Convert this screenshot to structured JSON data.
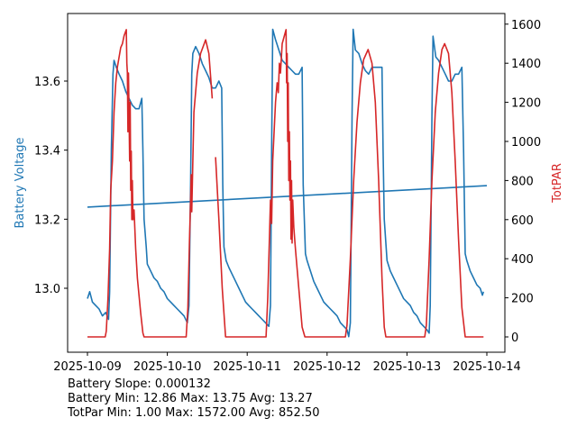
{
  "chart_data": {
    "type": "line",
    "xlabel": "",
    "ylabel_left": "Battery Voltage",
    "ylabel_right": "TotPAR",
    "x_ticks": [
      "2025-10-09",
      "2025-10-10",
      "2025-10-11",
      "2025-10-12",
      "2025-10-13",
      "2025-10-14"
    ],
    "y_left_ticks": [
      "13.0",
      "13.2",
      "13.4",
      "13.6"
    ],
    "y_right_ticks": [
      "0",
      "200",
      "400",
      "600",
      "800",
      "1000",
      "1200",
      "1400",
      "1600"
    ],
    "y_left_lim": [
      12.82,
      13.8
    ],
    "y_right_lim": [
      -75,
      1650
    ],
    "grid": false,
    "colors": {
      "battery": "#1f77b4",
      "par": "#d62728"
    },
    "annotations": [
      "Battery Slope: 0.000132",
      "Battery Min: 12.86 Max: 13.75 Avg: 13.27",
      "TotPar Min: 1.00 Max: 1572.00 Avg: 852.50"
    ],
    "series": [
      {
        "axis": "left",
        "color": "#1f77b4",
        "points": [
          [
            "2025-10-09T00:00",
            12.97
          ],
          [
            "2025-10-09T00:40",
            12.99
          ],
          [
            "2025-10-09T01:30",
            12.96
          ],
          [
            "2025-10-09T02:30",
            12.95
          ],
          [
            "2025-10-09T03:30",
            12.94
          ],
          [
            "2025-10-09T04:30",
            12.92
          ],
          [
            "2025-10-09T05:30",
            12.93
          ],
          [
            "2025-10-09T06:20",
            12.91
          ],
          [
            "2025-10-09T06:40",
            12.99
          ],
          [
            "2025-10-09T07:10",
            13.4
          ],
          [
            "2025-10-09T07:40",
            13.62
          ],
          [
            "2025-10-09T08:00",
            13.66
          ],
          [
            "2025-10-09T08:40",
            13.64
          ],
          [
            "2025-10-09T09:30",
            13.62
          ],
          [
            "2025-10-09T10:30",
            13.6
          ],
          [
            "2025-10-09T11:30",
            13.57
          ],
          [
            "2025-10-09T12:30",
            13.55
          ],
          [
            "2025-10-09T13:30",
            13.53
          ],
          [
            "2025-10-09T14:30",
            13.52
          ],
          [
            "2025-10-09T15:30",
            13.52
          ],
          [
            "2025-10-09T16:20",
            13.55
          ],
          [
            "2025-10-09T16:40",
            13.4
          ],
          [
            "2025-10-09T17:00",
            13.2
          ],
          [
            "2025-10-09T17:40",
            13.12
          ],
          [
            "2025-10-09T18:00",
            13.07
          ],
          [
            "2025-10-09T19:00",
            13.05
          ],
          [
            "2025-10-09T20:00",
            13.03
          ],
          [
            "2025-10-09T21:00",
            13.02
          ],
          [
            "2025-10-09T22:00",
            13.0
          ],
          [
            "2025-10-09T23:00",
            12.99
          ],
          [
            "2025-10-10T00:00",
            12.97
          ],
          [
            "2025-10-10T01:00",
            12.96
          ],
          [
            "2025-10-10T02:00",
            12.95
          ],
          [
            "2025-10-10T03:00",
            12.94
          ],
          [
            "2025-10-10T04:00",
            12.93
          ],
          [
            "2025-10-10T05:00",
            12.92
          ],
          [
            "2025-10-10T06:00",
            12.9
          ],
          [
            "2025-10-10T06:30",
            12.95
          ],
          [
            "2025-10-10T07:00",
            13.3
          ],
          [
            "2025-10-10T07:20",
            13.62
          ],
          [
            "2025-10-10T07:40",
            13.68
          ],
          [
            "2025-10-10T08:30",
            13.7
          ],
          [
            "2025-10-10T09:30",
            13.68
          ],
          [
            "2025-10-10T10:30",
            13.65
          ],
          [
            "2025-10-10T11:30",
            13.63
          ],
          [
            "2025-10-10T12:30",
            13.61
          ],
          [
            "2025-10-10T13:30",
            13.58
          ],
          [
            "2025-10-10T14:30",
            13.58
          ],
          [
            "2025-10-10T15:30",
            13.6
          ],
          [
            "2025-10-10T16:20",
            13.58
          ],
          [
            "2025-10-10T16:40",
            13.3
          ],
          [
            "2025-10-10T17:00",
            13.12
          ],
          [
            "2025-10-10T17:40",
            13.08
          ],
          [
            "2025-10-10T18:30",
            13.06
          ],
          [
            "2025-10-10T19:30",
            13.04
          ],
          [
            "2025-10-10T20:30",
            13.02
          ],
          [
            "2025-10-10T21:30",
            13.0
          ],
          [
            "2025-10-10T22:30",
            12.98
          ],
          [
            "2025-10-10T23:30",
            12.96
          ],
          [
            "2025-10-11T00:30",
            12.95
          ],
          [
            "2025-10-11T01:30",
            12.94
          ],
          [
            "2025-10-11T02:30",
            12.93
          ],
          [
            "2025-10-11T03:30",
            12.92
          ],
          [
            "2025-10-11T04:30",
            12.91
          ],
          [
            "2025-10-11T05:30",
            12.9
          ],
          [
            "2025-10-11T06:30",
            12.89
          ],
          [
            "2025-10-11T07:00",
            12.95
          ],
          [
            "2025-10-11T07:20",
            13.4
          ],
          [
            "2025-10-11T07:40",
            13.75
          ],
          [
            "2025-10-11T08:30",
            13.72
          ],
          [
            "2025-10-11T09:30",
            13.69
          ],
          [
            "2025-10-11T10:30",
            13.66
          ],
          [
            "2025-10-11T11:30",
            13.65
          ],
          [
            "2025-10-11T12:30",
            13.64
          ],
          [
            "2025-10-11T13:30",
            13.63
          ],
          [
            "2025-10-11T14:30",
            13.62
          ],
          [
            "2025-10-11T15:30",
            13.62
          ],
          [
            "2025-10-11T16:30",
            13.64
          ],
          [
            "2025-10-11T16:50",
            13.3
          ],
          [
            "2025-10-11T17:30",
            13.1
          ],
          [
            "2025-10-11T18:00",
            13.08
          ],
          [
            "2025-10-11T19:00",
            13.05
          ],
          [
            "2025-10-11T20:00",
            13.02
          ],
          [
            "2025-10-11T21:00",
            13.0
          ],
          [
            "2025-10-11T22:00",
            12.98
          ],
          [
            "2025-10-11T23:00",
            12.96
          ],
          [
            "2025-10-12T00:00",
            12.95
          ],
          [
            "2025-10-12T01:00",
            12.94
          ],
          [
            "2025-10-12T02:00",
            12.93
          ],
          [
            "2025-10-12T03:00",
            12.92
          ],
          [
            "2025-10-12T04:00",
            12.9
          ],
          [
            "2025-10-12T05:00",
            12.89
          ],
          [
            "2025-10-12T06:00",
            12.88
          ],
          [
            "2025-10-12T06:30",
            12.86
          ],
          [
            "2025-10-12T07:00",
            12.9
          ],
          [
            "2025-10-12T07:30",
            13.5
          ],
          [
            "2025-10-12T07:50",
            13.75
          ],
          [
            "2025-10-12T08:30",
            13.69
          ],
          [
            "2025-10-12T09:30",
            13.68
          ],
          [
            "2025-10-12T10:30",
            13.65
          ],
          [
            "2025-10-12T11:30",
            13.63
          ],
          [
            "2025-10-12T12:30",
            13.62
          ],
          [
            "2025-10-12T13:30",
            13.64
          ],
          [
            "2025-10-12T14:30",
            13.64
          ],
          [
            "2025-10-12T15:30",
            13.64
          ],
          [
            "2025-10-12T16:30",
            13.64
          ],
          [
            "2025-10-12T16:50",
            13.4
          ],
          [
            "2025-10-12T17:10",
            13.2
          ],
          [
            "2025-10-12T18:00",
            13.08
          ],
          [
            "2025-10-12T19:00",
            13.05
          ],
          [
            "2025-10-12T20:00",
            13.03
          ],
          [
            "2025-10-12T21:00",
            13.01
          ],
          [
            "2025-10-12T22:00",
            12.99
          ],
          [
            "2025-10-12T23:00",
            12.97
          ],
          [
            "2025-10-13T00:00",
            12.96
          ],
          [
            "2025-10-13T01:00",
            12.95
          ],
          [
            "2025-10-13T02:00",
            12.93
          ],
          [
            "2025-10-13T03:00",
            12.92
          ],
          [
            "2025-10-13T04:00",
            12.9
          ],
          [
            "2025-10-13T05:00",
            12.89
          ],
          [
            "2025-10-13T06:00",
            12.88
          ],
          [
            "2025-10-13T06:40",
            12.87
          ],
          [
            "2025-10-13T07:00",
            12.95
          ],
          [
            "2025-10-13T07:30",
            13.5
          ],
          [
            "2025-10-13T07:50",
            13.73
          ],
          [
            "2025-10-13T08:40",
            13.67
          ],
          [
            "2025-10-13T09:30",
            13.66
          ],
          [
            "2025-10-13T10:30",
            13.64
          ],
          [
            "2025-10-13T11:30",
            13.62
          ],
          [
            "2025-10-13T12:30",
            13.6
          ],
          [
            "2025-10-13T13:30",
            13.6
          ],
          [
            "2025-10-13T14:30",
            13.62
          ],
          [
            "2025-10-13T15:30",
            13.62
          ],
          [
            "2025-10-13T16:30",
            13.64
          ],
          [
            "2025-10-13T17:00",
            13.4
          ],
          [
            "2025-10-13T17:30",
            13.1
          ],
          [
            "2025-10-13T18:00",
            13.08
          ],
          [
            "2025-10-13T19:00",
            13.05
          ],
          [
            "2025-10-13T20:00",
            13.03
          ],
          [
            "2025-10-13T21:00",
            13.01
          ],
          [
            "2025-10-13T22:00",
            13.0
          ],
          [
            "2025-10-13T22:40",
            12.98
          ],
          [
            "2025-10-13T23:00",
            12.99
          ]
        ]
      },
      {
        "axis": "left",
        "color": "#1f77b4",
        "points": [
          [
            "2025-10-09T00:00",
            13.235
          ],
          [
            "2025-10-14T00:00",
            13.297
          ]
        ]
      },
      {
        "axis": "right",
        "color": "#d62728",
        "points": [
          [
            "2025-10-09T00:00",
            0
          ],
          [
            "2025-10-09T05:20",
            0
          ],
          [
            "2025-10-09T05:40",
            30
          ],
          [
            "2025-10-09T06:10",
            200
          ],
          [
            "2025-10-09T06:40",
            450
          ],
          [
            "2025-10-09T07:00",
            750
          ],
          [
            "2025-10-09T07:30",
            900
          ],
          [
            "2025-10-09T08:00",
            1150
          ],
          [
            "2025-10-09T08:30",
            1300
          ],
          [
            "2025-10-09T09:00",
            1380
          ],
          [
            "2025-10-09T10:00",
            1480
          ],
          [
            "2025-10-09T10:30",
            1500
          ],
          [
            "2025-10-09T11:00",
            1540
          ],
          [
            "2025-10-09T11:40",
            1572
          ],
          [
            "2025-10-09T11:50",
            1400
          ],
          [
            "2025-10-09T12:00",
            1350
          ],
          [
            "2025-10-09T12:10",
            1050
          ],
          [
            "2025-10-09T12:20",
            1350
          ],
          [
            "2025-10-09T12:30",
            1150
          ],
          [
            "2025-10-09T12:40",
            900
          ],
          [
            "2025-10-09T12:50",
            1200
          ],
          [
            "2025-10-09T13:00",
            750
          ],
          [
            "2025-10-09T13:10",
            950
          ],
          [
            "2025-10-09T13:20",
            600
          ],
          [
            "2025-10-09T13:30",
            800
          ],
          [
            "2025-10-09T13:40",
            600
          ],
          [
            "2025-10-09T14:00",
            650
          ],
          [
            "2025-10-09T14:30",
            450
          ],
          [
            "2025-10-09T15:00",
            300
          ],
          [
            "2025-10-09T16:00",
            120
          ],
          [
            "2025-10-09T16:40",
            20
          ],
          [
            "2025-10-09T17:00",
            0
          ],
          [
            "2025-10-10T05:40",
            0
          ],
          [
            "2025-10-10T06:10",
            150
          ],
          [
            "2025-10-10T06:40",
            500
          ],
          [
            "2025-10-10T07:00",
            700
          ],
          [
            "2025-10-10T07:10",
            830
          ],
          [
            "2025-10-10T07:20",
            640
          ],
          [
            "2025-10-10T07:40",
            900
          ],
          [
            "2025-10-10T08:00",
            1150
          ],
          [
            "2025-10-10T09:00",
            1350
          ],
          [
            "2025-10-10T10:00",
            1450
          ],
          [
            "2025-10-10T11:30",
            1520
          ],
          [
            "2025-10-10T12:30",
            1450
          ],
          [
            "2025-10-10T13:30",
            1220
          ],
          [
            null,
            null
          ],
          [
            "2025-10-10T14:30",
            920
          ],
          [
            "2025-10-10T15:30",
            600
          ],
          [
            "2025-10-10T16:30",
            250
          ],
          [
            "2025-10-10T17:30",
            0
          ],
          [
            "2025-10-11T05:40",
            0
          ],
          [
            "2025-10-11T06:10",
            200
          ],
          [
            "2025-10-11T06:40",
            500
          ],
          [
            "2025-10-11T07:00",
            700
          ],
          [
            "2025-10-11T07:20",
            580
          ],
          [
            "2025-10-11T07:40",
            900
          ],
          [
            "2025-10-11T08:30",
            1200
          ],
          [
            "2025-10-11T09:00",
            1300
          ],
          [
            "2025-10-11T09:20",
            1250
          ],
          [
            "2025-10-11T09:40",
            1400
          ],
          [
            "2025-10-11T10:00",
            1350
          ],
          [
            "2025-10-11T10:30",
            1500
          ],
          [
            "2025-10-11T11:40",
            1572
          ],
          [
            "2025-10-11T11:50",
            1300
          ],
          [
            "2025-10-11T12:00",
            1450
          ],
          [
            "2025-10-11T12:10",
            1000
          ],
          [
            "2025-10-11T12:20",
            1300
          ],
          [
            "2025-10-11T12:30",
            800
          ],
          [
            "2025-10-11T12:40",
            1050
          ],
          [
            "2025-10-11T12:50",
            700
          ],
          [
            "2025-10-11T13:00",
            900
          ],
          [
            "2025-10-11T13:10",
            500
          ],
          [
            "2025-10-11T13:20",
            800
          ],
          [
            "2025-10-11T13:30",
            480
          ],
          [
            "2025-10-11T13:40",
            700
          ],
          [
            "2025-10-11T14:00",
            560
          ],
          [
            "2025-10-11T14:30",
            450
          ],
          [
            "2025-10-11T15:30",
            250
          ],
          [
            "2025-10-11T16:30",
            50
          ],
          [
            "2025-10-11T17:20",
            0
          ],
          [
            "2025-10-12T05:30",
            0
          ],
          [
            "2025-10-12T06:00",
            60
          ],
          [
            "2025-10-12T07:00",
            400
          ],
          [
            "2025-10-12T08:00",
            800
          ],
          [
            "2025-10-12T09:00",
            1100
          ],
          [
            "2025-10-12T10:00",
            1300
          ],
          [
            "2025-10-12T11:00",
            1420
          ],
          [
            "2025-10-12T12:20",
            1470
          ],
          [
            "2025-10-12T13:30",
            1400
          ],
          [
            "2025-10-12T14:30",
            1200
          ],
          [
            "2025-10-12T15:30",
            800
          ],
          [
            "2025-10-12T16:30",
            300
          ],
          [
            "2025-10-12T17:10",
            50
          ],
          [
            "2025-10-12T17:40",
            0
          ],
          [
            "2025-10-13T05:20",
            0
          ],
          [
            "2025-10-13T05:50",
            60
          ],
          [
            "2025-10-13T06:40",
            400
          ],
          [
            "2025-10-13T07:30",
            800
          ],
          [
            "2025-10-13T08:30",
            1150
          ],
          [
            "2025-10-13T09:30",
            1350
          ],
          [
            "2025-10-13T10:30",
            1470
          ],
          [
            "2025-10-13T11:20",
            1500
          ],
          [
            "2025-10-13T12:30",
            1450
          ],
          [
            "2025-10-13T13:30",
            1250
          ],
          [
            "2025-10-13T14:30",
            900
          ],
          [
            "2025-10-13T15:30",
            500
          ],
          [
            "2025-10-13T16:30",
            150
          ],
          [
            "2025-10-13T17:30",
            0
          ],
          [
            "2025-10-13T23:00",
            0
          ]
        ]
      }
    ]
  }
}
